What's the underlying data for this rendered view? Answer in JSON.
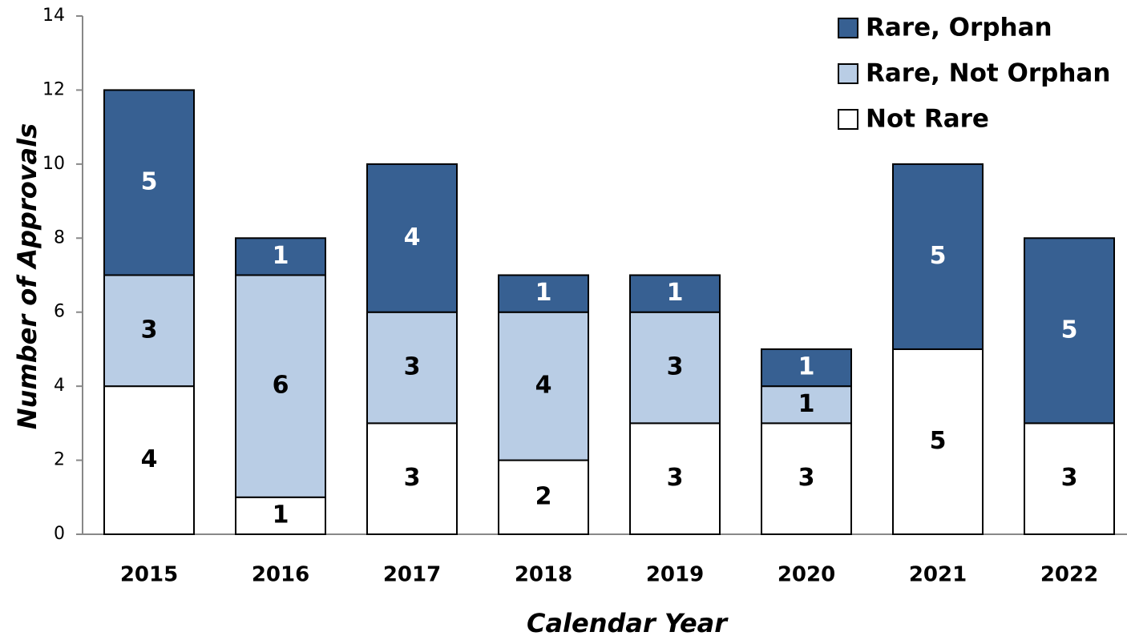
{
  "chart_data": {
    "type": "stacked_bar",
    "x_label": "Calendar Year",
    "y_label": "Number of Approvals",
    "categories": [
      "2015",
      "2016",
      "2017",
      "2018",
      "2019",
      "2020",
      "2021",
      "2022"
    ],
    "series": [
      {
        "name": "Not Rare",
        "color": "#ffffff",
        "values": [
          4,
          1,
          3,
          2,
          3,
          3,
          5,
          3
        ]
      },
      {
        "name": "Rare, Not Orphan",
        "color": "#b9cde5",
        "values": [
          3,
          6,
          3,
          4,
          3,
          1,
          0,
          0
        ]
      },
      {
        "name": "Rare, Orphan",
        "color": "#376092",
        "values": [
          5,
          1,
          4,
          1,
          1,
          1,
          5,
          5
        ]
      }
    ],
    "ylim": [
      0,
      14
    ],
    "yticks": [
      0,
      2,
      4,
      6,
      8,
      10,
      12,
      14
    ],
    "legend": "upper right"
  }
}
